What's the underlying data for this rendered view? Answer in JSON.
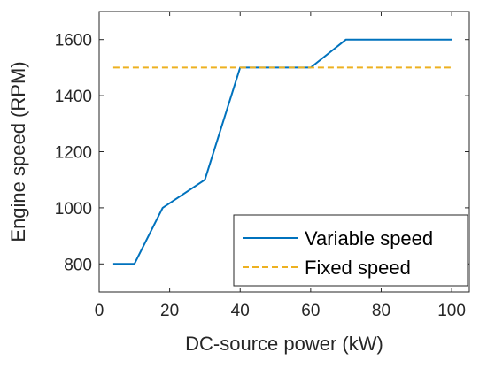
{
  "chart_data": {
    "type": "line",
    "title": "",
    "xlabel": "DC-source power (kW)",
    "ylabel": "Engine speed (RPM)",
    "xlim": [
      0,
      105
    ],
    "ylim": [
      700,
      1700
    ],
    "xticks": [
      0,
      20,
      40,
      60,
      80,
      100
    ],
    "yticks": [
      800,
      1000,
      1200,
      1400,
      1600
    ],
    "grid": false,
    "legend_position": "bottom-right",
    "series": [
      {
        "name": "Variable speed",
        "color": "#0072BD",
        "style": "solid",
        "x": [
          4,
          10,
          18,
          30,
          40,
          50,
          60,
          70,
          80,
          90,
          100
        ],
        "y": [
          800,
          800,
          1000,
          1100,
          1500,
          1500,
          1500,
          1600,
          1600,
          1600,
          1600
        ]
      },
      {
        "name": "Fixed speed",
        "color": "#EDB120",
        "style": "dashed",
        "x": [
          4,
          100
        ],
        "y": [
          1500,
          1500
        ]
      }
    ]
  }
}
